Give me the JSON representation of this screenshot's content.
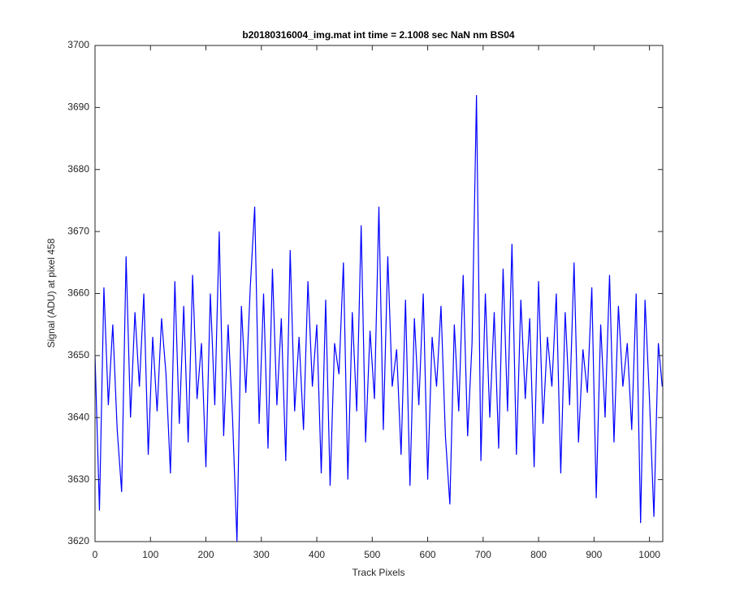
{
  "chart_data": {
    "type": "line",
    "title": "b20180316004_img.mat int time = 2.1008 sec  NaN nm BS04",
    "xlabel": "Track Pixels",
    "ylabel": "Signal (ADU) at pixel 458",
    "x": [
      0,
      8,
      16,
      24,
      32,
      40,
      48,
      56,
      64,
      72,
      80,
      88,
      96,
      104,
      112,
      120,
      128,
      136,
      144,
      152,
      160,
      168,
      176,
      184,
      192,
      200,
      208,
      216,
      224,
      232,
      240,
      248,
      256,
      264,
      272,
      280,
      288,
      296,
      304,
      312,
      320,
      328,
      336,
      344,
      352,
      360,
      368,
      376,
      384,
      392,
      400,
      408,
      416,
      424,
      432,
      440,
      448,
      456,
      464,
      472,
      480,
      488,
      496,
      504,
      512,
      520,
      528,
      536,
      544,
      552,
      560,
      568,
      576,
      584,
      592,
      600,
      608,
      616,
      624,
      632,
      640,
      648,
      656,
      664,
      672,
      680,
      688,
      696,
      704,
      712,
      720,
      728,
      736,
      744,
      752,
      760,
      768,
      776,
      784,
      792,
      800,
      808,
      816,
      824,
      832,
      840,
      848,
      856,
      864,
      872,
      880,
      888,
      896,
      904,
      912,
      920,
      928,
      936,
      944,
      952,
      960,
      968,
      976,
      984,
      992,
      1000,
      1008,
      1016,
      1023
    ],
    "series": [
      {
        "name": "Signal",
        "color": "#0000ff",
        "values": [
          3650,
          3625,
          3661,
          3642,
          3655,
          3638,
          3628,
          3666,
          3640,
          3657,
          3645,
          3660,
          3634,
          3653,
          3641,
          3656,
          3647,
          3631,
          3662,
          3639,
          3658,
          3636,
          3663,
          3643,
          3652,
          3632,
          3660,
          3642,
          3670,
          3637,
          3655,
          3640,
          3620,
          3658,
          3644,
          3661,
          3674,
          3639,
          3660,
          3635,
          3664,
          3642,
          3656,
          3633,
          3667,
          3641,
          3653,
          3638,
          3662,
          3645,
          3655,
          3631,
          3659,
          3629,
          3652,
          3647,
          3665,
          3630,
          3657,
          3641,
          3671,
          3636,
          3654,
          3643,
          3674,
          3638,
          3666,
          3645,
          3651,
          3634,
          3659,
          3629,
          3656,
          3642,
          3660,
          3630,
          3653,
          3645,
          3658,
          3637,
          3626,
          3655,
          3641,
          3663,
          3637,
          3652,
          3692,
          3633,
          3660,
          3640,
          3657,
          3635,
          3664,
          3641,
          3668,
          3634,
          3659,
          3643,
          3656,
          3632,
          3662,
          3639,
          3653,
          3645,
          3660,
          3631,
          3657,
          3642,
          3665,
          3636,
          3651,
          3644,
          3661,
          3627,
          3655,
          3640,
          3663,
          3636,
          3658,
          3645,
          3652,
          3638,
          3660,
          3623,
          3659,
          3643,
          3624,
          3652,
          3645
        ]
      }
    ],
    "xlim": [
      0,
      1024
    ],
    "ylim": [
      3620,
      3700
    ],
    "xticks": [
      0,
      100,
      200,
      300,
      400,
      500,
      600,
      700,
      800,
      900,
      1000
    ],
    "yticks": [
      3620,
      3630,
      3640,
      3650,
      3660,
      3670,
      3680,
      3690,
      3700
    ],
    "grid": false
  }
}
